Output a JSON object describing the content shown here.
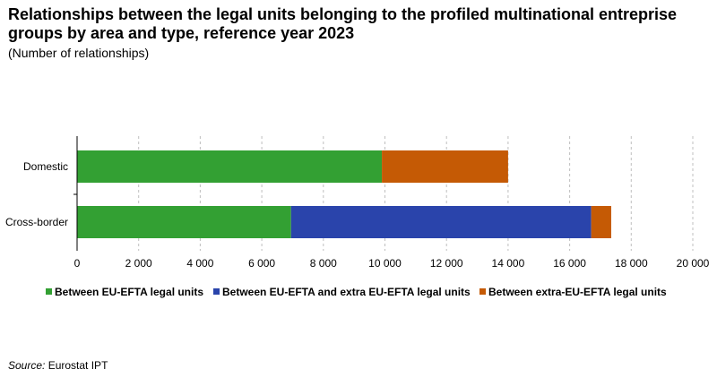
{
  "title": "Relationships between the legal units belonging to the profiled multinational entreprise groups by area and type, reference year 2023",
  "subtitle": "(Number  of relationships)",
  "source": {
    "label": "Source:",
    "text": "Eurostat IPT"
  },
  "chart_data": {
    "type": "bar",
    "orientation": "horizontal",
    "stacked": true,
    "categories": [
      "Domestic",
      "Cross-border"
    ],
    "series": [
      {
        "name": "Between EU-EFTA legal units",
        "color": "#33a033",
        "values": [
          9900,
          6950
        ]
      },
      {
        "name": "Between EU-EFTA and extra EU-EFTA legal units",
        "color": "#2a44ab",
        "values": [
          0,
          9750
        ]
      },
      {
        "name": "Between extra-EU-EFTA legal units",
        "color": "#c55a05",
        "values": [
          4100,
          650
        ]
      }
    ],
    "xlim": [
      0,
      20000
    ],
    "xticks": [
      0,
      2000,
      4000,
      6000,
      8000,
      10000,
      12000,
      14000,
      16000,
      18000,
      20000
    ],
    "xtick_labels": [
      "0",
      "2 000",
      "4 000",
      "6 000",
      "8 000",
      "10 000",
      "12 000",
      "14 000",
      "16 000",
      "18 000",
      "20 000"
    ],
    "xlabel": "",
    "ylabel": "",
    "grid": "vertical-dashed",
    "legend_position": "bottom"
  }
}
